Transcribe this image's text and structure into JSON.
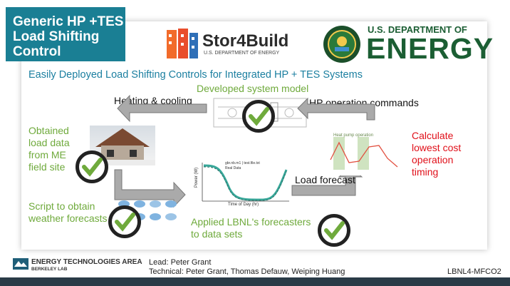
{
  "title": "Generic HP +TES Load Shifting Control",
  "stor4build": {
    "name": "Stor4Build",
    "sub": "U.S. DEPARTMENT OF ENERGY"
  },
  "doe": {
    "line1": "U.S. DEPARTMENT OF",
    "line2": "ENERGY"
  },
  "subtitle": "Easily Deployed Load Shifting Controls for Integrated HP + TES Systems",
  "labels": {
    "developed_model": "Developed system model",
    "heating_cooling": "Heating & cooling",
    "hp_commands": "HP operation commands",
    "obtained": "Obtained load data from ME field site",
    "calculate": "Calculate lowest cost operation timing",
    "load_forecast": "Load forecast",
    "script": "Script to obtain weather forecasts",
    "applied": "Applied LBNL's forecasters to data sets"
  },
  "mini_chart": {
    "legend1": "gbr.nb.m1 | test.file.txt",
    "legend2": "Real Data",
    "xlabel": "Time of Day (hr)",
    "ylabel": "Power (W)"
  },
  "hp_chart": {
    "annotation": "Heat pump operation"
  },
  "footer": {
    "area": "ENERGY TECHNOLOGIES AREA",
    "lab": "BERKELEY LAB",
    "lead": "Lead: Peter Grant",
    "technical": "Technical: Peter Grant, Thomas Defauw, Weiping Huang",
    "code": "LBNL4-MFCO2"
  },
  "colors": {
    "teal": "#1a7f94",
    "green": "#6faa3c",
    "red": "#e0101a"
  }
}
